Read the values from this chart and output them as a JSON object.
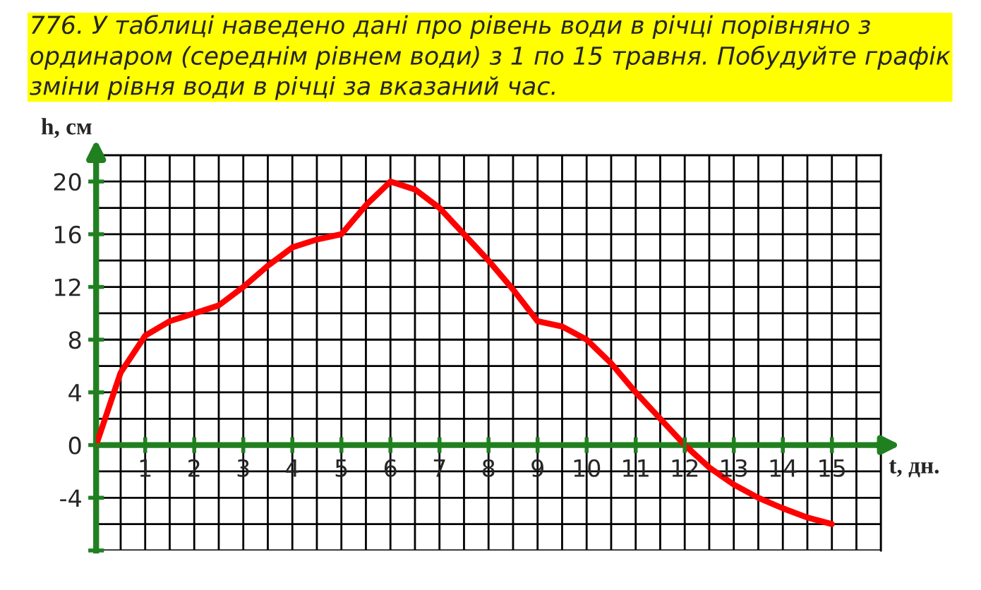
{
  "chart_data": {
    "type": "line",
    "title": "776. У таблиці наведено дані про рівень води в річці порівняно з ординаром (середнім рівнем води) з 1 по 15 травня. Побудуйте графік зміни рівня води в річці за вказаний час.",
    "xlabel": "t, дн.",
    "ylabel": "h, см",
    "x": [
      0,
      0.5,
      1,
      1.5,
      2,
      2.5,
      3,
      3.5,
      4,
      4.5,
      5,
      5.5,
      6,
      6.5,
      7,
      7.5,
      8,
      8.5,
      9,
      9.5,
      10,
      10.5,
      11,
      11.5,
      12,
      12.5,
      13,
      13.5,
      14,
      14.5,
      15
    ],
    "series": [
      {
        "color": "#ff0000",
        "values": [
          0,
          5.5,
          8.3,
          9.4,
          10,
          10.6,
          12,
          13.6,
          15,
          15.6,
          16,
          18.2,
          20,
          19.4,
          18,
          16,
          14,
          11.8,
          9.4,
          9,
          8,
          6.2,
          4,
          2,
          0,
          -1.7,
          -3,
          -4,
          -4.8,
          -5.5,
          -6
        ]
      }
    ],
    "xlim": [
      0,
      16
    ],
    "ylim": [
      -8,
      22
    ],
    "xticks": [
      1,
      2,
      3,
      4,
      5,
      6,
      7,
      8,
      9,
      10,
      11,
      12,
      13,
      14,
      15
    ],
    "yticks": [
      {
        "value": -8,
        "label": null
      },
      -4,
      0,
      4,
      8,
      12,
      16,
      20
    ],
    "grid": true,
    "line_style": "solid",
    "marker": "none"
  }
}
